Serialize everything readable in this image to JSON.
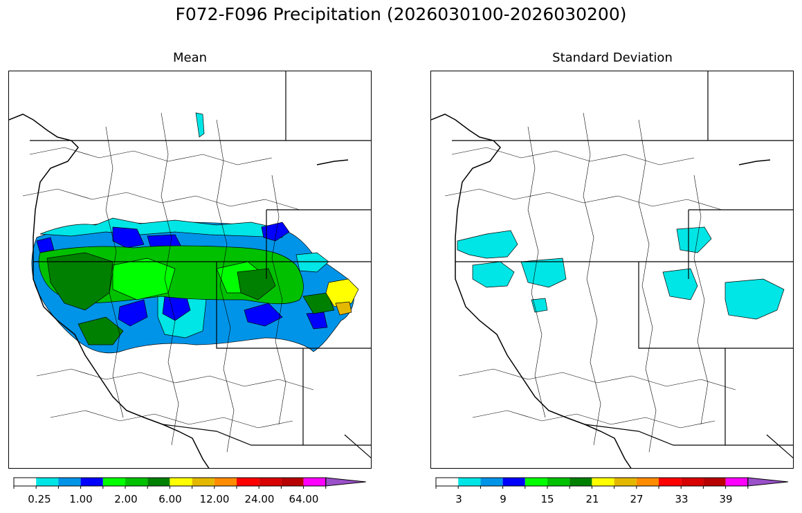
{
  "figure": {
    "title": "F072-F096 Precipitation (2026030100-2026030200)"
  },
  "colormap": [
    "#ffffff",
    "#00e5e5",
    "#0094e8",
    "#0000ff",
    "#00ff00",
    "#00c000",
    "#008000",
    "#ffff00",
    "#e5b800",
    "#ff8c00",
    "#ff0000",
    "#d90000",
    "#b80000",
    "#ff00ff",
    "#9a50c8"
  ],
  "panels": [
    {
      "title": "Mean",
      "colorbar": {
        "ticks": [
          "0.25",
          "1.00",
          "2.00",
          "6.00",
          "12.00",
          "24.00",
          "64.00"
        ]
      },
      "regions": [
        {
          "color": "#0094e8",
          "level": "1.00"
        },
        {
          "color": "#00e5e5",
          "level": "0.25"
        },
        {
          "color": "#0000ff",
          "level": "1.5"
        },
        {
          "color": "#00c000",
          "level": "3"
        },
        {
          "color": "#00ff00",
          "level": "2.00"
        },
        {
          "color": "#008000",
          "level": "6.00"
        },
        {
          "color": "#ffff00",
          "level": "8"
        },
        {
          "color": "#e5b800",
          "level": "12.00"
        }
      ]
    },
    {
      "title": "Standard Deviation",
      "colorbar": {
        "ticks": [
          "3",
          "9",
          "15",
          "21",
          "27",
          "33",
          "39"
        ]
      },
      "regions": [
        {
          "color": "#00e5e5",
          "level": "3"
        }
      ]
    }
  ]
}
